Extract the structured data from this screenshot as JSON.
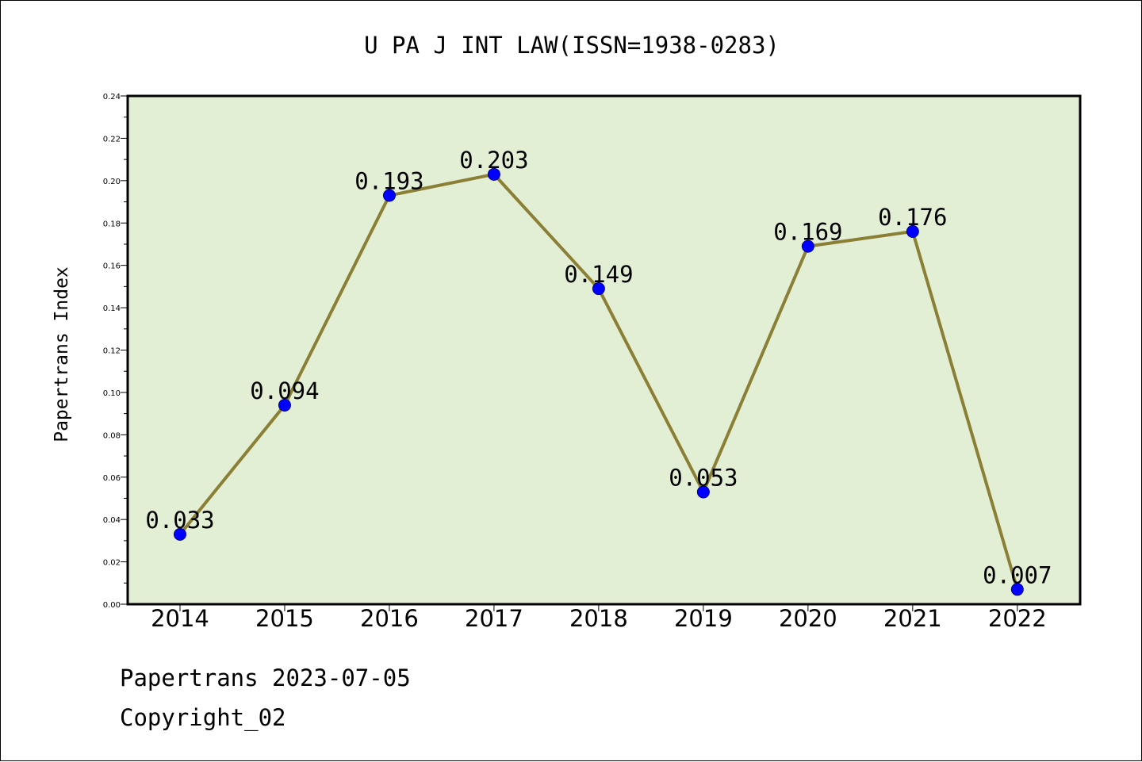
{
  "chart_data": {
    "type": "line",
    "title": "U PA J INT LAW(ISSN=1938-0283)",
    "xlabel": "",
    "ylabel": "Papertrans Index",
    "categories": [
      "2014",
      "2015",
      "2016",
      "2017",
      "2018",
      "2019",
      "2020",
      "2021",
      "2022"
    ],
    "series": [
      {
        "values": [
          0.033,
          0.094,
          0.193,
          0.203,
          0.149,
          0.053,
          0.169,
          0.176,
          0.007
        ],
        "data_labels": [
          "0.033",
          "0.094",
          "0.193",
          "0.203",
          "0.149",
          "0.053",
          "0.169",
          "0.176",
          "0.007"
        ]
      }
    ],
    "ylim": [
      0,
      0.24
    ],
    "y_ticks": [
      "0.00",
      "0.02",
      "0.04",
      "0.06",
      "0.08",
      "0.10",
      "0.12",
      "0.14",
      "0.16",
      "0.18",
      "0.20",
      "0.22",
      "0.24"
    ],
    "grid": false,
    "legend": "none",
    "colors": {
      "plot_background": "#e2efd5",
      "line": "#8b7f35",
      "marker_fill": "#0000ff",
      "marker_edge": "#00008b"
    }
  },
  "footer": {
    "line1": "Papertrans 2023-07-05",
    "line2": "Copyright_02"
  }
}
